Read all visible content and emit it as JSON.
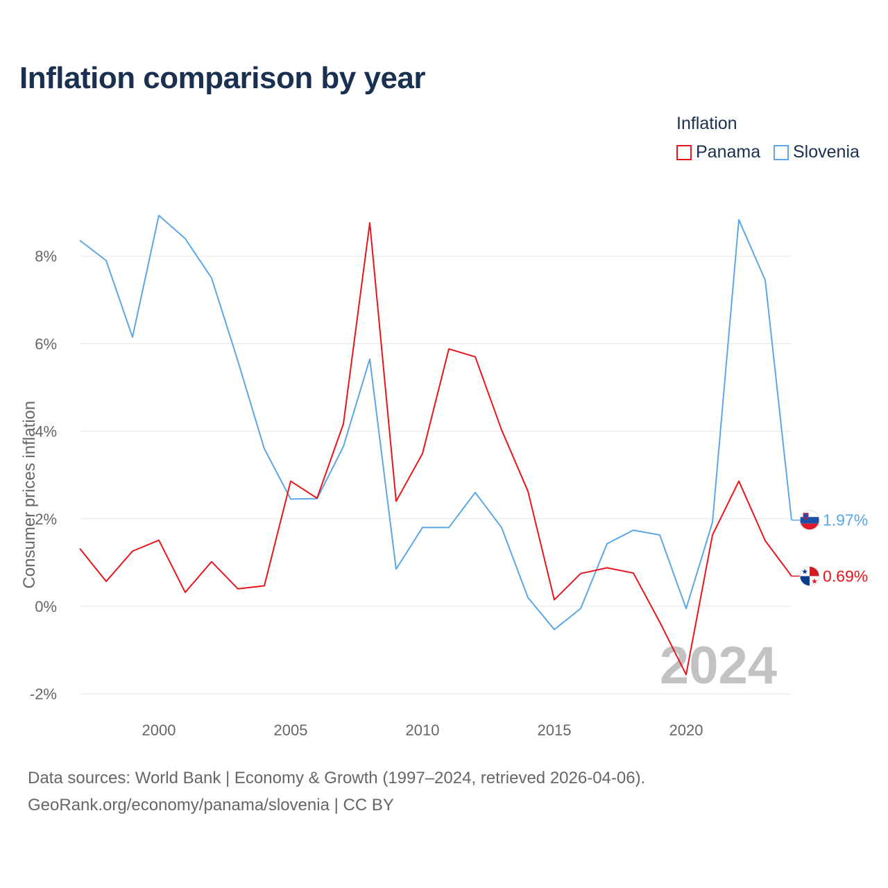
{
  "chart_data": {
    "type": "line",
    "title": "Inflation comparison by year",
    "legend_title": "Inflation",
    "legend_position": "top-right",
    "ylabel": "Consumer prices inflation",
    "xlabel": "",
    "year_label": "2024",
    "ylim": [
      -2.3,
      9.3
    ],
    "xlim": [
      1997,
      2024
    ],
    "y_ticks": [
      -2,
      0,
      2,
      4,
      6,
      8
    ],
    "y_tick_labels": [
      "-2%",
      "0%",
      "2%",
      "4%",
      "6%",
      "8%"
    ],
    "x_ticks": [
      2000,
      2005,
      2010,
      2015,
      2020
    ],
    "x_tick_labels": [
      "2000",
      "2005",
      "2010",
      "2015",
      "2020"
    ],
    "grid": true,
    "x": [
      1997,
      1998,
      1999,
      2000,
      2001,
      2002,
      2003,
      2004,
      2005,
      2006,
      2007,
      2008,
      2009,
      2010,
      2011,
      2012,
      2013,
      2014,
      2015,
      2016,
      2017,
      2018,
      2019,
      2020,
      2021,
      2022,
      2023,
      2024
    ],
    "series": [
      {
        "name": "Panama",
        "color": "#e8141c",
        "flag": "panama-flag-icon",
        "end_label": "0.69%",
        "values": [
          1.32,
          0.57,
          1.26,
          1.51,
          0.32,
          1.02,
          0.4,
          0.47,
          2.86,
          2.47,
          4.17,
          8.76,
          2.4,
          3.49,
          5.88,
          5.7,
          4.03,
          2.63,
          0.15,
          0.75,
          0.88,
          0.76,
          -0.36,
          -1.56,
          1.63,
          2.86,
          1.5,
          0.69
        ]
      },
      {
        "name": "Slovenia",
        "color": "#5aa6e6",
        "flag": "slovenia-flag-icon",
        "end_label": "1.97%",
        "values": [
          8.36,
          7.9,
          6.15,
          8.93,
          8.4,
          7.5,
          5.6,
          3.6,
          2.45,
          2.46,
          3.65,
          5.65,
          0.85,
          1.8,
          1.8,
          2.6,
          1.8,
          0.2,
          -0.53,
          -0.05,
          1.43,
          1.74,
          1.63,
          -0.05,
          1.92,
          8.83,
          7.45,
          1.97
        ]
      }
    ]
  },
  "footer": {
    "line1": "Data sources: World Bank | Economy & Growth (1997–2024, retrieved 2026-04-06).",
    "line2": "GeoRank.org/economy/panama/slovenia | CC BY"
  }
}
